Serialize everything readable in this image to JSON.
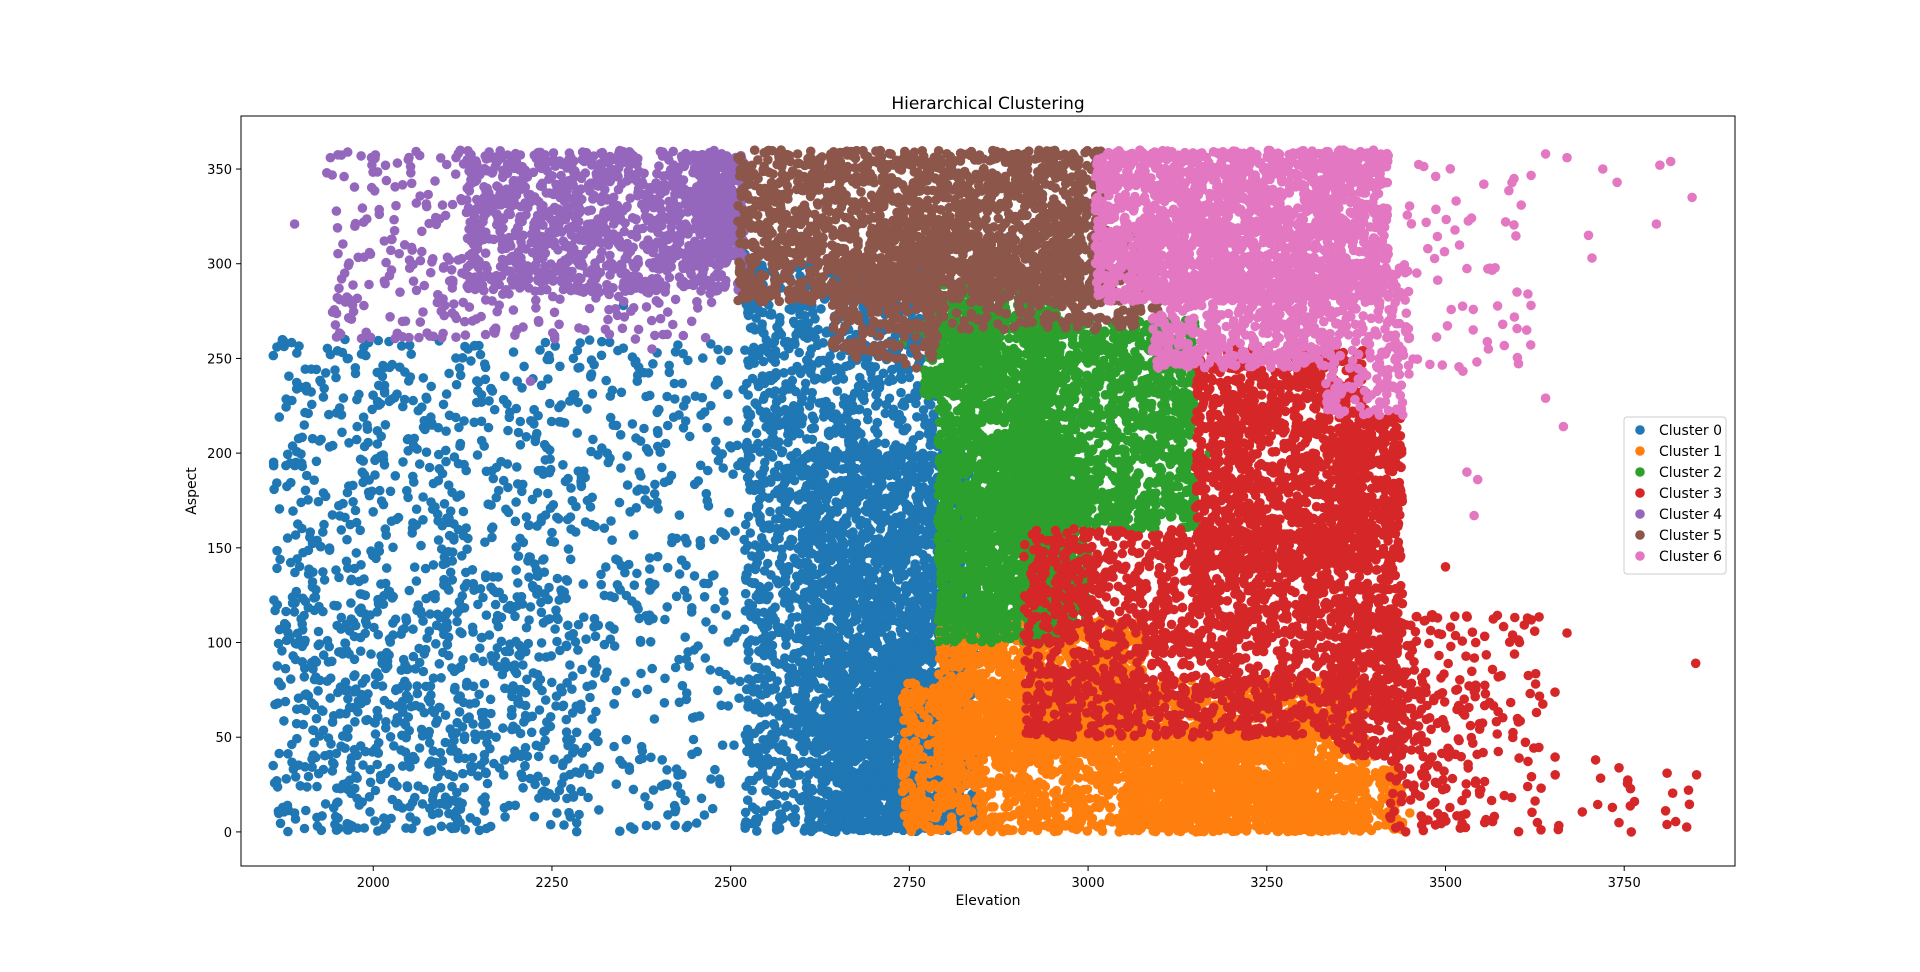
{
  "chart_data": {
    "type": "scatter",
    "title": "Hierarchical Clustering",
    "xlabel": "Elevation",
    "ylabel": "Aspect",
    "xlim": [
      1815,
      3905
    ],
    "ylim": [
      -18,
      378
    ],
    "xticks": [
      2000,
      2250,
      2500,
      2750,
      3000,
      3250,
      3500,
      3750
    ],
    "yticks": [
      0,
      50,
      100,
      150,
      200,
      250,
      300,
      350
    ],
    "grid": false,
    "legend": "center-right",
    "series": [
      {
        "name": "Cluster 0",
        "color": "#1f77b4",
        "clouds": [
          {
            "x0": 1860,
            "x1": 2760,
            "y0": 0,
            "y1": 260,
            "n": 1500,
            "skew": 0.6
          },
          {
            "x0": 2520,
            "x1": 2790,
            "y0": 0,
            "y1": 300,
            "n": 1800,
            "skew": 1.0
          },
          {
            "x0": 2600,
            "x1": 2840,
            "y0": 0,
            "y1": 200,
            "n": 1500,
            "skew": 1.0
          },
          {
            "x0": 2650,
            "x1": 2850,
            "y0": 0,
            "y1": 100,
            "n": 700,
            "skew": 1.0
          },
          {
            "x0": 1900,
            "x1": 2300,
            "y0": 0,
            "y1": 130,
            "n": 300,
            "skew": 1.0
          }
        ],
        "points": [
          [
            1860,
            35
          ],
          [
            1865,
            27
          ],
          [
            1880,
            14
          ],
          [
            1890,
            10
          ],
          [
            1940,
            252
          ],
          [
            1950,
            254
          ],
          [
            1965,
            250
          ],
          [
            1980,
            231
          ],
          [
            2000,
            169
          ],
          [
            2010,
            226
          ],
          [
            2150,
            252
          ],
          [
            2280,
            250
          ],
          [
            2350,
            278
          ],
          [
            2450,
            290
          ],
          [
            2520,
            305
          ],
          [
            2560,
            310
          ],
          [
            2620,
            305
          ],
          [
            2650,
            308
          ],
          [
            2670,
            300
          ],
          [
            2750,
            240
          ]
        ]
      },
      {
        "name": "Cluster 1",
        "color": "#ff7f0e",
        "clouds": [
          {
            "x0": 2740,
            "x1": 3390,
            "y0": 0,
            "y1": 80,
            "n": 2200,
            "skew": 1.0
          },
          {
            "x0": 2790,
            "x1": 3080,
            "y0": 40,
            "y1": 112,
            "n": 1200,
            "skew": 1.0
          },
          {
            "x0": 3050,
            "x1": 3320,
            "y0": 0,
            "y1": 55,
            "n": 900,
            "skew": 1.0
          },
          {
            "x0": 3280,
            "x1": 3440,
            "y0": 0,
            "y1": 35,
            "n": 250,
            "skew": 1.0
          }
        ],
        "points": [
          [
            3400,
            40
          ],
          [
            3430,
            18
          ],
          [
            3440,
            5
          ],
          [
            3450,
            10
          ],
          [
            3410,
            28
          ]
        ]
      },
      {
        "name": "Cluster 2",
        "color": "#2ca02c",
        "clouds": [
          {
            "x0": 2790,
            "x1": 2960,
            "y0": 100,
            "y1": 290,
            "n": 1400,
            "skew": 1.0
          },
          {
            "x0": 2900,
            "x1": 3150,
            "y0": 160,
            "y1": 270,
            "n": 1200,
            "skew": 1.0
          },
          {
            "x0": 2790,
            "x1": 3000,
            "y0": 110,
            "y1": 210,
            "n": 900,
            "skew": 1.0
          },
          {
            "x0": 2770,
            "x1": 2880,
            "y0": 230,
            "y1": 275,
            "n": 250,
            "skew": 1.0
          }
        ],
        "points": [
          [
            2880,
            300
          ],
          [
            2740,
            258
          ],
          [
            2760,
            262
          ],
          [
            3170,
            200
          ],
          [
            2900,
            110
          ],
          [
            2950,
            105
          ]
        ]
      },
      {
        "name": "Cluster 3",
        "color": "#d62728",
        "clouds": [
          {
            "x0": 2910,
            "x1": 3360,
            "y0": 50,
            "y1": 160,
            "n": 1700,
            "skew": 1.0
          },
          {
            "x0": 3150,
            "x1": 3390,
            "y0": 140,
            "y1": 255,
            "n": 1200,
            "skew": 1.0
          },
          {
            "x0": 3350,
            "x1": 3440,
            "y0": 40,
            "y1": 220,
            "n": 700,
            "skew": 1.0
          },
          {
            "x0": 3420,
            "x1": 3680,
            "y0": 0,
            "y1": 115,
            "n": 300,
            "skew": 0.5
          },
          {
            "x0": 3650,
            "x1": 3860,
            "y0": 0,
            "y1": 35,
            "n": 20,
            "skew": 1.0
          }
        ],
        "points": [
          [
            3850,
            89
          ],
          [
            3760,
            0
          ],
          [
            3810,
            31
          ],
          [
            3670,
            105
          ],
          [
            3500,
            140
          ],
          [
            3620,
            112
          ],
          [
            3840,
            22
          ],
          [
            3710,
            38
          ]
        ]
      },
      {
        "name": "Cluster 4",
        "color": "#9467bd",
        "clouds": [
          {
            "x0": 2130,
            "x1": 2520,
            "y0": 285,
            "y1": 360,
            "n": 900,
            "skew": 1.0
          },
          {
            "x0": 1940,
            "x1": 2480,
            "y0": 260,
            "y1": 360,
            "n": 450,
            "skew": 1.0
          },
          {
            "x0": 2450,
            "x1": 2520,
            "y0": 300,
            "y1": 358,
            "n": 200,
            "skew": 1.0
          }
        ],
        "points": [
          [
            1890,
            321
          ],
          [
            1940,
            356
          ],
          [
            1960,
            295
          ],
          [
            1935,
            348
          ],
          [
            2050,
            261
          ],
          [
            2220,
            238
          ],
          [
            2260,
            268
          ],
          [
            2390,
            255
          ]
        ]
      },
      {
        "name": "Cluster 5",
        "color": "#8c564b",
        "clouds": [
          {
            "x0": 2510,
            "x1": 3020,
            "y0": 280,
            "y1": 360,
            "n": 1800,
            "skew": 1.0
          },
          {
            "x0": 2700,
            "x1": 3100,
            "y0": 265,
            "y1": 320,
            "n": 500,
            "skew": 1.0
          },
          {
            "x0": 2640,
            "x1": 2790,
            "y0": 250,
            "y1": 300,
            "n": 200,
            "skew": 1.0
          }
        ],
        "points": [
          [
            2720,
            250
          ],
          [
            2745,
            247
          ],
          [
            2760,
            245
          ]
        ]
      },
      {
        "name": "Cluster 6",
        "color": "#e377c2",
        "clouds": [
          {
            "x0": 3010,
            "x1": 3420,
            "y0": 280,
            "y1": 360,
            "n": 2000,
            "skew": 1.0
          },
          {
            "x0": 3090,
            "x1": 3340,
            "y0": 245,
            "y1": 300,
            "n": 600,
            "skew": 1.0
          },
          {
            "x0": 3330,
            "x1": 3450,
            "y0": 220,
            "y1": 300,
            "n": 250,
            "skew": 1.0
          },
          {
            "x0": 3440,
            "x1": 3620,
            "y0": 240,
            "y1": 355,
            "n": 60,
            "skew": 1.0
          }
        ],
        "points": [
          [
            3640,
            358
          ],
          [
            3670,
            356
          ],
          [
            3700,
            315
          ],
          [
            3705,
            303
          ],
          [
            3720,
            350
          ],
          [
            3740,
            343
          ],
          [
            3800,
            352
          ],
          [
            3815,
            354
          ],
          [
            3845,
            335
          ],
          [
            3795,
            321
          ],
          [
            3600,
            285
          ],
          [
            3640,
            229
          ],
          [
            3665,
            214
          ],
          [
            3530,
            190
          ],
          [
            3545,
            186
          ],
          [
            3540,
            167
          ],
          [
            3560,
            255
          ],
          [
            3580,
            268
          ]
        ]
      }
    ]
  }
}
